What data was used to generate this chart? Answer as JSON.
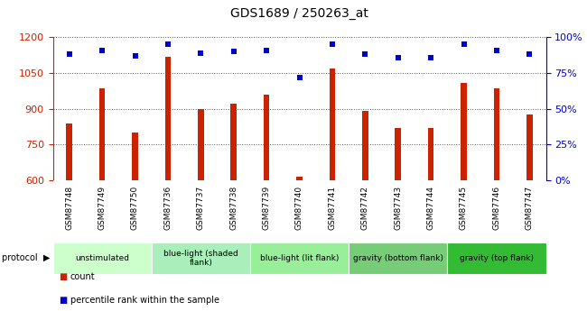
{
  "title": "GDS1689 / 250263_at",
  "samples": [
    "GSM87748",
    "GSM87749",
    "GSM87750",
    "GSM87736",
    "GSM87737",
    "GSM87738",
    "GSM87739",
    "GSM87740",
    "GSM87741",
    "GSM87742",
    "GSM87743",
    "GSM87744",
    "GSM87745",
    "GSM87746",
    "GSM87747"
  ],
  "counts": [
    840,
    985,
    800,
    1120,
    900,
    920,
    960,
    615,
    1070,
    890,
    820,
    820,
    1010,
    985,
    875
  ],
  "percentiles": [
    88,
    91,
    87,
    95,
    89,
    90,
    91,
    72,
    95,
    88,
    86,
    86,
    95,
    91,
    88
  ],
  "bar_color": "#cc2200",
  "dot_color": "#0000cc",
  "ylim_left": [
    600,
    1200
  ],
  "ylim_right": [
    0,
    100
  ],
  "yticks_left": [
    600,
    750,
    900,
    1050,
    1200
  ],
  "yticks_right": [
    0,
    25,
    50,
    75,
    100
  ],
  "groups": [
    {
      "label": "unstimulated",
      "start": 0,
      "end": 3,
      "color": "#ccffcc"
    },
    {
      "label": "blue-light (shaded\nflank)",
      "start": 3,
      "end": 6,
      "color": "#aaeebb"
    },
    {
      "label": "blue-light (lit flank)",
      "start": 6,
      "end": 9,
      "color": "#99ee99"
    },
    {
      "label": "gravity (bottom flank)",
      "start": 9,
      "end": 12,
      "color": "#77cc77"
    },
    {
      "label": "gravity (top flank)",
      "start": 12,
      "end": 15,
      "color": "#33bb33"
    }
  ],
  "background_color": "#ffffff",
  "grid_color": "#555555",
  "tick_color_left": "#cc2200",
  "tick_color_right": "#0000cc",
  "sample_bg_color": "#cccccc",
  "growth_label": "growth protocol",
  "legend_items": [
    {
      "label": "count",
      "color": "#cc2200"
    },
    {
      "label": "percentile rank within the sample",
      "color": "#0000cc"
    }
  ]
}
